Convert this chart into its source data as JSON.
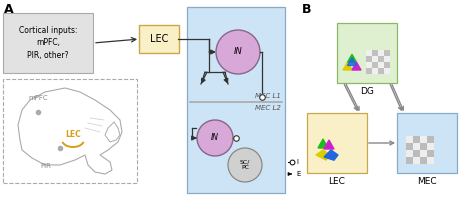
{
  "panel_A_label": "A",
  "panel_B_label": "B",
  "cortical_box_text": "Cortical inputs:\nmPFC,\nPIR, other?",
  "LEC_box_text": "LEC",
  "IN_label": "IN",
  "SCPC_label": "SC/\nPC",
  "MEC_L1_label": "MEC L1",
  "MEC_L2_label": "MEC L2",
  "I_label": "I",
  "E_label": "E",
  "mPFC_label": "mPFC",
  "LEC_brain_label": "LEC",
  "PIR_label": "PIR",
  "DG_label": "DG",
  "LEC_bottom_label": "LEC",
  "MEC_bottom_label": "MEC",
  "bg_blue": "#cce4f5",
  "lec_box_fill": "#faf0c8",
  "lec_box_edge": "#c8a84a",
  "cortical_box_fill": "#e2e2e2",
  "cortical_box_edge": "#aaaaaa",
  "in_circle_fill": "#d8a8d8",
  "in_circle_edge": "#886688",
  "scpc_circle_fill": "#d0d0d0",
  "scpc_circle_edge": "#888888",
  "mec_line_color": "#aaaaaa",
  "arrow_color": "#333333",
  "dg_box_fill": "#dff0d0",
  "dg_box_edge": "#88b868",
  "lec_b_fill": "#faf0c8",
  "lec_b_edge": "#c8a84a",
  "mec_b_fill": "#cce4f5",
  "mec_b_edge": "#88aac8",
  "lec_brain_color": "#d4a017",
  "brain_color": "#cccccc",
  "mec_box_edge": "#88aac8"
}
